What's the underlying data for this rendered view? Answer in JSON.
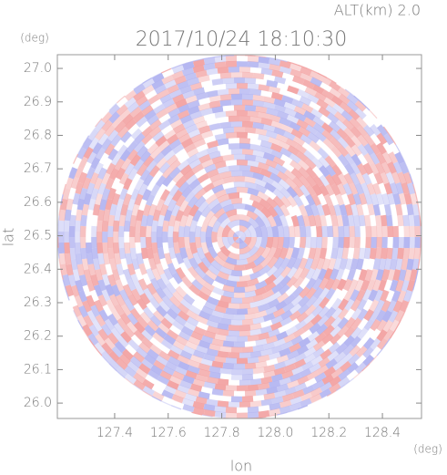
{
  "chart_data": {
    "type": "radar-ppi",
    "title": "2017/10/24 18:10:30",
    "altitude_label": "ALT(km) 2.0",
    "x_label": "lon",
    "y_label": "lat",
    "x_unit": "(deg)",
    "y_unit": "(deg)",
    "xlim": [
      127.186,
      128.546
    ],
    "ylim": [
      25.954,
      27.041
    ],
    "xticks": [
      127.4,
      127.6,
      127.8,
      {
        "value": 128,
        "label": "128.0"
      },
      128.2,
      128.4
    ],
    "yticks": [
      {
        "value": 26,
        "label": "26.0"
      },
      26.1,
      26.2,
      26.3,
      26.4,
      26.5,
      26.6,
      26.7,
      26.8,
      26.9,
      {
        "value": 27,
        "label": "27.0"
      }
    ]
  }
}
